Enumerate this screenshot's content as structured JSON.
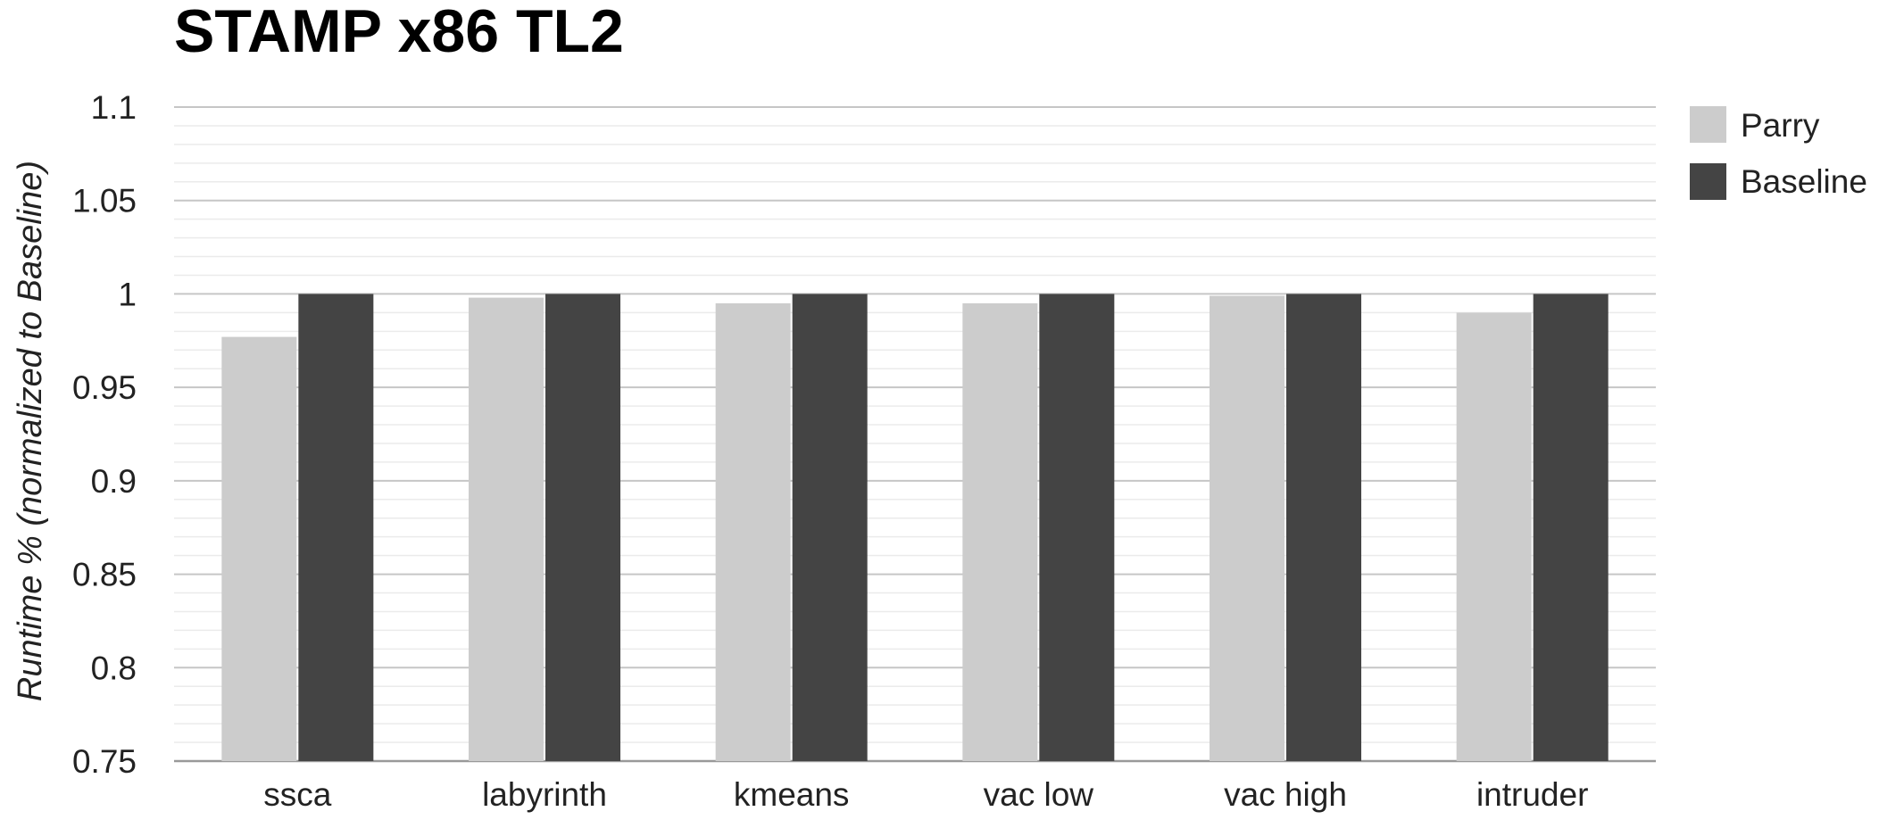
{
  "chart_data": {
    "type": "bar",
    "title": "STAMP x86 TL2",
    "xlabel": "",
    "ylabel": "Runtime % (normalized to Baseline)",
    "categories": [
      "ssca",
      "labyrinth",
      "kmeans",
      "vac low",
      "vac high",
      "intruder"
    ],
    "series": [
      {
        "name": "Parry",
        "values": [
          0.977,
          0.998,
          0.995,
          0.995,
          0.999,
          0.99
        ],
        "color": "#cccccc"
      },
      {
        "name": "Baseline",
        "values": [
          1.0,
          1.0,
          1.0,
          1.0,
          1.0,
          1.0
        ],
        "color": "#444444"
      }
    ],
    "ylim": [
      0.75,
      1.1
    ],
    "yticks": [
      "0.75",
      "0.8",
      "0.85",
      "0.9",
      "0.95",
      "1",
      "1.05",
      "1.1"
    ],
    "ytick_values": [
      0.75,
      0.8,
      0.85,
      0.9,
      0.95,
      1.0,
      1.05,
      1.1
    ],
    "minor_gridlines": true,
    "legend_position": "top-right"
  }
}
